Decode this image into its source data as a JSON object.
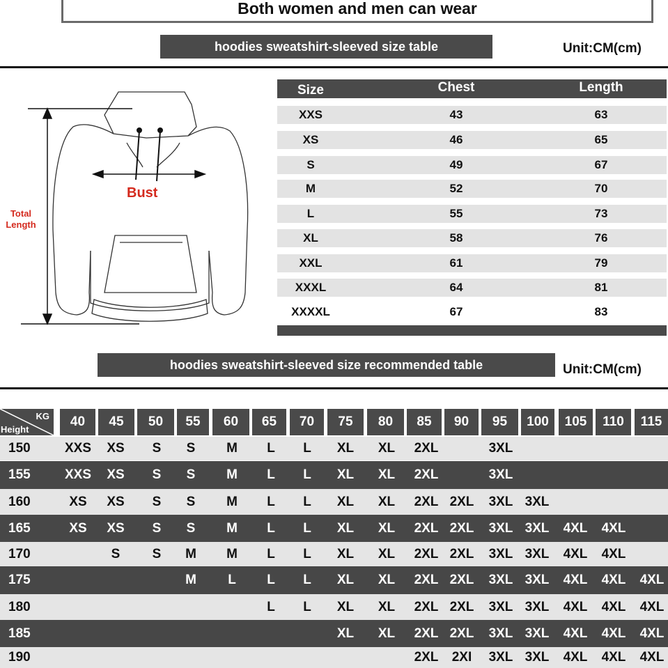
{
  "header_title": "Both women and men can wear",
  "size_table": {
    "banner": "hoodies sweatshirt-sleeved size  table",
    "unit": "Unit:CM(cm)",
    "columns": [
      "Size",
      "Chest",
      "Length"
    ],
    "rows": [
      [
        "XXS",
        "43",
        "63"
      ],
      [
        "XS",
        "46",
        "65"
      ],
      [
        "S",
        "49",
        "67"
      ],
      [
        "M",
        "52",
        "70"
      ],
      [
        "L",
        "55",
        "73"
      ],
      [
        "XL",
        "58",
        "76"
      ],
      [
        "XXL",
        "61",
        "79"
      ],
      [
        "XXXL",
        "64",
        "81"
      ],
      [
        "XXXXL",
        "67",
        "83"
      ]
    ]
  },
  "diagram": {
    "bust_label": "Bust",
    "length_label_1": "Total",
    "length_label_2": "Length",
    "label_color": "#d42a1e"
  },
  "recommend_table": {
    "banner": "hoodies sweatshirt-sleeved size recommended table",
    "unit": "Unit:CM(cm)",
    "corner_kg": "KG",
    "corner_height": "Height",
    "weights": [
      "40",
      "45",
      "50",
      "55",
      "60",
      "65",
      "70",
      "75",
      "80",
      "85",
      "90",
      "95",
      "100",
      "105",
      "110",
      "115"
    ],
    "rows": [
      {
        "height": "150",
        "sizes": [
          "XXS",
          "XS",
          "S",
          "S",
          "M",
          "L",
          "L",
          "XL",
          "XL",
          "2XL",
          "",
          "3XL",
          "",
          "",
          "",
          ""
        ]
      },
      {
        "height": "155",
        "sizes": [
          "XXS",
          "XS",
          "S",
          "S",
          "M",
          "L",
          "L",
          "XL",
          "XL",
          "2XL",
          "",
          "3XL",
          "",
          "",
          "",
          ""
        ]
      },
      {
        "height": "160",
        "sizes": [
          "XS",
          "XS",
          "S",
          "S",
          "M",
          "L",
          "L",
          "XL",
          "XL",
          "2XL",
          "2XL",
          "3XL",
          "3XL",
          "",
          "",
          ""
        ]
      },
      {
        "height": "165",
        "sizes": [
          "XS",
          "XS",
          "S",
          "S",
          "M",
          "L",
          "L",
          "XL",
          "XL",
          "2XL",
          "2XL",
          "3XL",
          "3XL",
          "4XL",
          "4XL",
          ""
        ]
      },
      {
        "height": "170",
        "sizes": [
          "",
          "S",
          "S",
          "M",
          "M",
          "L",
          "L",
          "XL",
          "XL",
          "2XL",
          "2XL",
          "3XL",
          "3XL",
          "4XL",
          "4XL",
          ""
        ]
      },
      {
        "height": "175",
        "sizes": [
          "",
          "",
          "",
          "M",
          "L",
          "L",
          "L",
          "XL",
          "XL",
          "2XL",
          "2XL",
          "3XL",
          "3XL",
          "4XL",
          "4XL",
          "4XL"
        ]
      },
      {
        "height": "180",
        "sizes": [
          "",
          "",
          "",
          "",
          "",
          "L",
          "L",
          "XL",
          "XL",
          "2XL",
          "2XL",
          "3XL",
          "3XL",
          "4XL",
          "4XL",
          "4XL"
        ]
      },
      {
        "height": "185",
        "sizes": [
          "",
          "",
          "",
          "",
          "",
          "",
          "",
          "XL",
          "XL",
          "2XL",
          "2XL",
          "3XL",
          "3XL",
          "4XL",
          "4XL",
          "4XL"
        ]
      },
      {
        "height": "190",
        "sizes": [
          "",
          "",
          "",
          "",
          "",
          "",
          "",
          "",
          "",
          "2XL",
          "2XI",
          "3XL",
          "3XL",
          "4XL",
          "4XL",
          "4XL"
        ]
      }
    ]
  }
}
